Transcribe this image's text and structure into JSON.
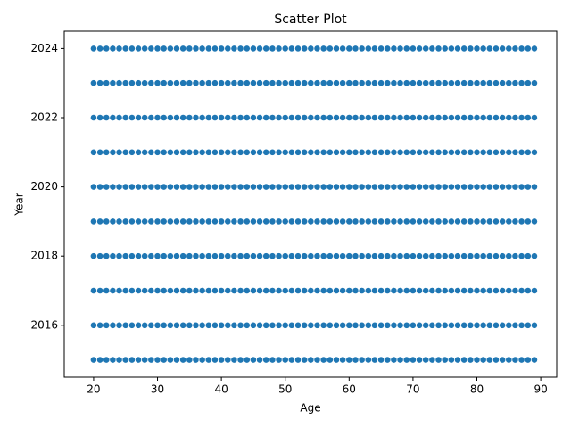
{
  "chart_data": {
    "type": "scatter",
    "title": "Scatter Plot",
    "x_label": "Age",
    "y_label": "Year",
    "x": [
      20,
      21,
      22,
      23,
      24,
      25,
      26,
      27,
      28,
      29,
      30,
      31,
      32,
      33,
      34,
      35,
      36,
      37,
      38,
      39,
      40,
      41,
      42,
      43,
      44,
      45,
      46,
      47,
      48,
      49,
      50,
      51,
      52,
      53,
      54,
      55,
      56,
      57,
      58,
      59,
      60,
      61,
      62,
      63,
      64,
      65,
      66,
      67,
      68,
      69,
      70,
      71,
      72,
      73,
      74,
      75,
      76,
      77,
      78,
      79,
      80,
      81,
      82,
      83,
      84,
      85,
      86,
      87,
      88,
      89
    ],
    "series": [
      {
        "color": "#1f77b4",
        "values": [
          2015,
          2015,
          2015,
          2015,
          2015,
          2015,
          2015,
          2015,
          2015,
          2015,
          2015,
          2015,
          2015,
          2015,
          2015,
          2015,
          2015,
          2015,
          2015,
          2015,
          2015,
          2015,
          2015,
          2015,
          2015,
          2015,
          2015,
          2015,
          2015,
          2015,
          2015,
          2015,
          2015,
          2015,
          2015,
          2015,
          2015,
          2015,
          2015,
          2015,
          2015,
          2015,
          2015,
          2015,
          2015,
          2015,
          2015,
          2015,
          2015,
          2015,
          2015,
          2015,
          2015,
          2015,
          2015,
          2015,
          2015,
          2015,
          2015,
          2015,
          2015,
          2015,
          2015,
          2015,
          2015,
          2015,
          2015,
          2015,
          2015,
          2015
        ]
      },
      {
        "color": "#1f77b4",
        "values": [
          2016,
          2016,
          2016,
          2016,
          2016,
          2016,
          2016,
          2016,
          2016,
          2016,
          2016,
          2016,
          2016,
          2016,
          2016,
          2016,
          2016,
          2016,
          2016,
          2016,
          2016,
          2016,
          2016,
          2016,
          2016,
          2016,
          2016,
          2016,
          2016,
          2016,
          2016,
          2016,
          2016,
          2016,
          2016,
          2016,
          2016,
          2016,
          2016,
          2016,
          2016,
          2016,
          2016,
          2016,
          2016,
          2016,
          2016,
          2016,
          2016,
          2016,
          2016,
          2016,
          2016,
          2016,
          2016,
          2016,
          2016,
          2016,
          2016,
          2016,
          2016,
          2016,
          2016,
          2016,
          2016,
          2016,
          2016,
          2016,
          2016,
          2016
        ]
      },
      {
        "color": "#1f77b4",
        "values": [
          2017,
          2017,
          2017,
          2017,
          2017,
          2017,
          2017,
          2017,
          2017,
          2017,
          2017,
          2017,
          2017,
          2017,
          2017,
          2017,
          2017,
          2017,
          2017,
          2017,
          2017,
          2017,
          2017,
          2017,
          2017,
          2017,
          2017,
          2017,
          2017,
          2017,
          2017,
          2017,
          2017,
          2017,
          2017,
          2017,
          2017,
          2017,
          2017,
          2017,
          2017,
          2017,
          2017,
          2017,
          2017,
          2017,
          2017,
          2017,
          2017,
          2017,
          2017,
          2017,
          2017,
          2017,
          2017,
          2017,
          2017,
          2017,
          2017,
          2017,
          2017,
          2017,
          2017,
          2017,
          2017,
          2017,
          2017,
          2017,
          2017,
          2017
        ]
      },
      {
        "color": "#1f77b4",
        "values": [
          2018,
          2018,
          2018,
          2018,
          2018,
          2018,
          2018,
          2018,
          2018,
          2018,
          2018,
          2018,
          2018,
          2018,
          2018,
          2018,
          2018,
          2018,
          2018,
          2018,
          2018,
          2018,
          2018,
          2018,
          2018,
          2018,
          2018,
          2018,
          2018,
          2018,
          2018,
          2018,
          2018,
          2018,
          2018,
          2018,
          2018,
          2018,
          2018,
          2018,
          2018,
          2018,
          2018,
          2018,
          2018,
          2018,
          2018,
          2018,
          2018,
          2018,
          2018,
          2018,
          2018,
          2018,
          2018,
          2018,
          2018,
          2018,
          2018,
          2018,
          2018,
          2018,
          2018,
          2018,
          2018,
          2018,
          2018,
          2018,
          2018,
          2018
        ]
      },
      {
        "color": "#1f77b4",
        "values": [
          2019,
          2019,
          2019,
          2019,
          2019,
          2019,
          2019,
          2019,
          2019,
          2019,
          2019,
          2019,
          2019,
          2019,
          2019,
          2019,
          2019,
          2019,
          2019,
          2019,
          2019,
          2019,
          2019,
          2019,
          2019,
          2019,
          2019,
          2019,
          2019,
          2019,
          2019,
          2019,
          2019,
          2019,
          2019,
          2019,
          2019,
          2019,
          2019,
          2019,
          2019,
          2019,
          2019,
          2019,
          2019,
          2019,
          2019,
          2019,
          2019,
          2019,
          2019,
          2019,
          2019,
          2019,
          2019,
          2019,
          2019,
          2019,
          2019,
          2019,
          2019,
          2019,
          2019,
          2019,
          2019,
          2019,
          2019,
          2019,
          2019,
          2019
        ]
      },
      {
        "color": "#1f77b4",
        "values": [
          2020,
          2020,
          2020,
          2020,
          2020,
          2020,
          2020,
          2020,
          2020,
          2020,
          2020,
          2020,
          2020,
          2020,
          2020,
          2020,
          2020,
          2020,
          2020,
          2020,
          2020,
          2020,
          2020,
          2020,
          2020,
          2020,
          2020,
          2020,
          2020,
          2020,
          2020,
          2020,
          2020,
          2020,
          2020,
          2020,
          2020,
          2020,
          2020,
          2020,
          2020,
          2020,
          2020,
          2020,
          2020,
          2020,
          2020,
          2020,
          2020,
          2020,
          2020,
          2020,
          2020,
          2020,
          2020,
          2020,
          2020,
          2020,
          2020,
          2020,
          2020,
          2020,
          2020,
          2020,
          2020,
          2020,
          2020,
          2020,
          2020,
          2020
        ]
      },
      {
        "color": "#1f77b4",
        "values": [
          2021,
          2021,
          2021,
          2021,
          2021,
          2021,
          2021,
          2021,
          2021,
          2021,
          2021,
          2021,
          2021,
          2021,
          2021,
          2021,
          2021,
          2021,
          2021,
          2021,
          2021,
          2021,
          2021,
          2021,
          2021,
          2021,
          2021,
          2021,
          2021,
          2021,
          2021,
          2021,
          2021,
          2021,
          2021,
          2021,
          2021,
          2021,
          2021,
          2021,
          2021,
          2021,
          2021,
          2021,
          2021,
          2021,
          2021,
          2021,
          2021,
          2021,
          2021,
          2021,
          2021,
          2021,
          2021,
          2021,
          2021,
          2021,
          2021,
          2021,
          2021,
          2021,
          2021,
          2021,
          2021,
          2021,
          2021,
          2021,
          2021,
          2021
        ]
      },
      {
        "color": "#1f77b4",
        "values": [
          2022,
          2022,
          2022,
          2022,
          2022,
          2022,
          2022,
          2022,
          2022,
          2022,
          2022,
          2022,
          2022,
          2022,
          2022,
          2022,
          2022,
          2022,
          2022,
          2022,
          2022,
          2022,
          2022,
          2022,
          2022,
          2022,
          2022,
          2022,
          2022,
          2022,
          2022,
          2022,
          2022,
          2022,
          2022,
          2022,
          2022,
          2022,
          2022,
          2022,
          2022,
          2022,
          2022,
          2022,
          2022,
          2022,
          2022,
          2022,
          2022,
          2022,
          2022,
          2022,
          2022,
          2022,
          2022,
          2022,
          2022,
          2022,
          2022,
          2022,
          2022,
          2022,
          2022,
          2022,
          2022,
          2022,
          2022,
          2022,
          2022,
          2022
        ]
      },
      {
        "color": "#1f77b4",
        "values": [
          2023,
          2023,
          2023,
          2023,
          2023,
          2023,
          2023,
          2023,
          2023,
          2023,
          2023,
          2023,
          2023,
          2023,
          2023,
          2023,
          2023,
          2023,
          2023,
          2023,
          2023,
          2023,
          2023,
          2023,
          2023,
          2023,
          2023,
          2023,
          2023,
          2023,
          2023,
          2023,
          2023,
          2023,
          2023,
          2023,
          2023,
          2023,
          2023,
          2023,
          2023,
          2023,
          2023,
          2023,
          2023,
          2023,
          2023,
          2023,
          2023,
          2023,
          2023,
          2023,
          2023,
          2023,
          2023,
          2023,
          2023,
          2023,
          2023,
          2023,
          2023,
          2023,
          2023,
          2023,
          2023,
          2023,
          2023,
          2023,
          2023,
          2023
        ]
      },
      {
        "color": "#1f77b4",
        "values": [
          2024,
          2024,
          2024,
          2024,
          2024,
          2024,
          2024,
          2024,
          2024,
          2024,
          2024,
          2024,
          2024,
          2024,
          2024,
          2024,
          2024,
          2024,
          2024,
          2024,
          2024,
          2024,
          2024,
          2024,
          2024,
          2024,
          2024,
          2024,
          2024,
          2024,
          2024,
          2024,
          2024,
          2024,
          2024,
          2024,
          2024,
          2024,
          2024,
          2024,
          2024,
          2024,
          2024,
          2024,
          2024,
          2024,
          2024,
          2024,
          2024,
          2024,
          2024,
          2024,
          2024,
          2024,
          2024,
          2024,
          2024,
          2024,
          2024,
          2024,
          2024,
          2024,
          2024,
          2024,
          2024,
          2024,
          2024,
          2024,
          2024,
          2024
        ]
      }
    ],
    "xlim": [
      15.4,
      92.5
    ],
    "xticks": [
      20,
      30,
      40,
      50,
      60,
      70,
      80,
      90
    ],
    "ylim": [
      2014.5,
      2024.5
    ],
    "yticks": [
      2016,
      2018,
      2020,
      2022,
      2024
    ],
    "grid": false
  }
}
